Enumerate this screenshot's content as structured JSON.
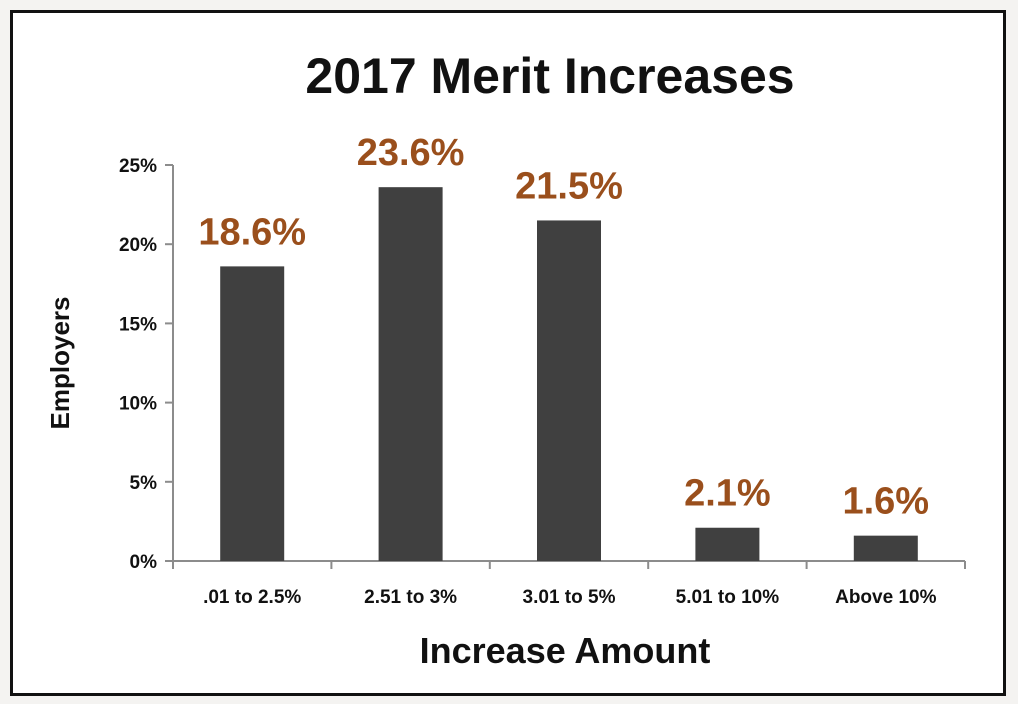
{
  "colors": {
    "bar": "#404040",
    "data_label": "#9a4f1c",
    "axis": "#8c8c8c"
  },
  "chart_data": {
    "type": "bar",
    "title": "2017 Merit Increases",
    "xlabel": "Increase Amount",
    "ylabel": "Employers",
    "categories": [
      ".01 to 2.5%",
      "2.51 to 3%",
      "3.01 to 5%",
      "5.01 to 10%",
      "Above 10%"
    ],
    "values": [
      18.6,
      23.6,
      21.5,
      2.1,
      1.6
    ],
    "data_labels": [
      "18.6%",
      "23.6%",
      "21.5%",
      "2.1%",
      "1.6%"
    ],
    "yticks": [
      0,
      5,
      10,
      15,
      20,
      25
    ],
    "ytick_labels": [
      "0%",
      "5%",
      "10%",
      "15%",
      "20%",
      "25%"
    ],
    "ylim": [
      0,
      25
    ],
    "grid": false,
    "legend": "none"
  }
}
